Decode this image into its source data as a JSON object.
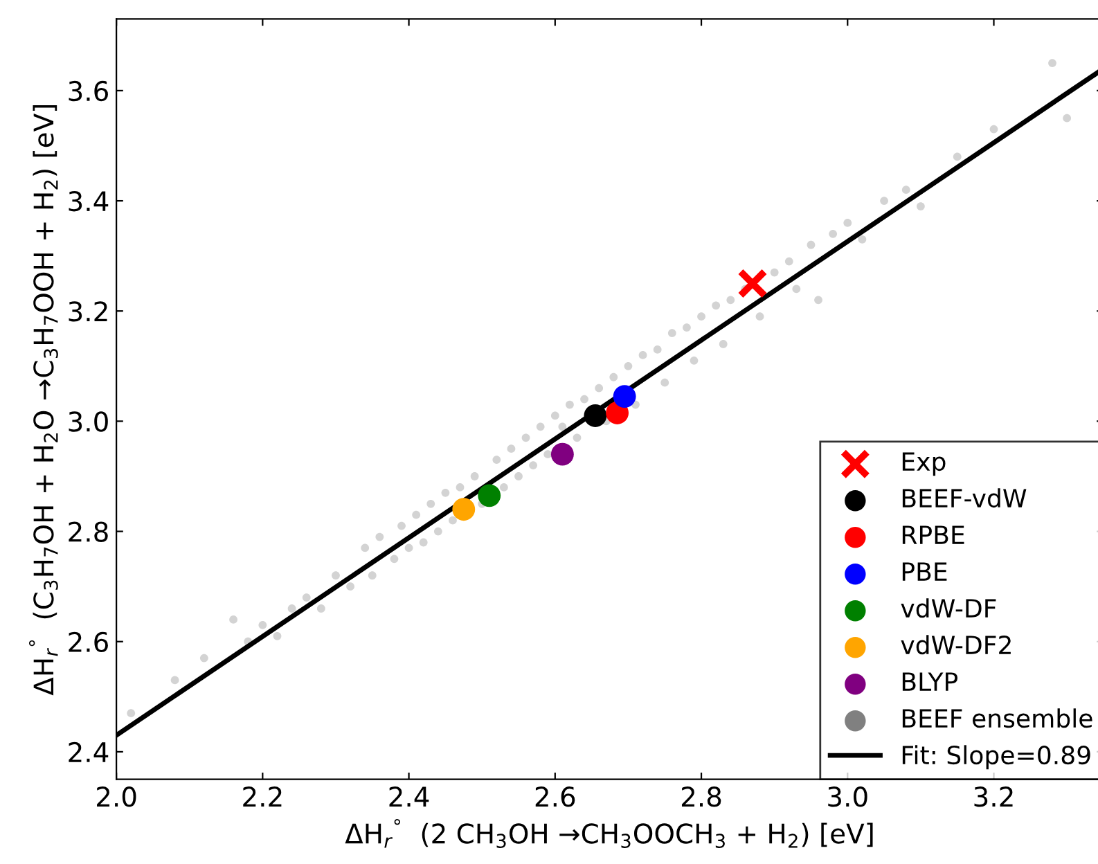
{
  "chart_data": {
    "type": "scatter",
    "xlabel": "ΔH$_{r}$$^{°}$  (2 CH$_{3}$OH →CH$_{3}$OOCH$_{3}$ + H$_{2}$) [eV]",
    "ylabel": "ΔH$_{r}$$^{°}$  (C$_{3}$H$_{7}$OH + H$_{2}$O →C$_{3}$H$_{7}$OOH + H$_{2}$) [eV]",
    "xlim": [
      2.0,
      3.35
    ],
    "ylim": [
      2.35,
      3.73
    ],
    "xticks": [
      {
        "value": 2.0,
        "label": "2.0"
      },
      2.2,
      2.4,
      2.6,
      2.8,
      {
        "value": 3.0,
        "label": "3.0"
      },
      3.2
    ],
    "yticks": [
      2.4,
      2.6,
      2.8,
      {
        "value": 3.0,
        "label": "3.0"
      },
      3.2,
      3.4,
      3.6
    ],
    "grid": false,
    "legend": "bottom right",
    "series": [
      {
        "name": "Exp",
        "color": "#ff0000",
        "marker": "cross",
        "x": [
          2.87
        ],
        "values": [
          3.25
        ]
      },
      {
        "name": "BEEF-vdW",
        "color": "#000000",
        "marker": "circle",
        "x": [
          2.655
        ],
        "values": [
          3.01
        ]
      },
      {
        "name": "RPBE",
        "color": "#ff0000",
        "marker": "circle",
        "x": [
          2.685
        ],
        "values": [
          3.015
        ]
      },
      {
        "name": "PBE",
        "color": "#0000ff",
        "marker": "circle",
        "x": [
          2.695
        ],
        "values": [
          3.045
        ]
      },
      {
        "name": "vdW-DF",
        "color": "#008000",
        "marker": "circle",
        "x": [
          2.51
        ],
        "values": [
          2.865
        ]
      },
      {
        "name": "vdW-DF2",
        "color": "#ffa500",
        "marker": "circle",
        "x": [
          2.475
        ],
        "values": [
          2.84
        ]
      },
      {
        "name": "BLYP",
        "color": "#800080",
        "marker": "circle",
        "x": [
          2.61
        ],
        "values": [
          2.94
        ]
      },
      {
        "name": "BEEF ensemble",
        "color": "#808080",
        "marker": "circle",
        "x": [
          2.02,
          2.08,
          2.12,
          2.16,
          2.18,
          2.2,
          2.22,
          2.24,
          2.26,
          2.28,
          2.3,
          2.32,
          2.34,
          2.35,
          2.36,
          2.38,
          2.39,
          2.4,
          2.41,
          2.42,
          2.43,
          2.44,
          2.45,
          2.46,
          2.47,
          2.49,
          2.5,
          2.52,
          2.53,
          2.54,
          2.55,
          2.56,
          2.57,
          2.58,
          2.59,
          2.6,
          2.61,
          2.62,
          2.63,
          2.64,
          2.66,
          2.67,
          2.68,
          2.7,
          2.71,
          2.72,
          2.74,
          2.75,
          2.76,
          2.78,
          2.79,
          2.8,
          2.82,
          2.83,
          2.84,
          2.86,
          2.88,
          2.9,
          2.92,
          2.93,
          2.95,
          2.96,
          2.98,
          3.0,
          3.02,
          3.05,
          3.08,
          3.1,
          3.15,
          3.2,
          3.28,
          3.3
        ],
        "values": [
          2.47,
          2.53,
          2.57,
          2.64,
          2.6,
          2.63,
          2.61,
          2.66,
          2.68,
          2.66,
          2.72,
          2.7,
          2.77,
          2.72,
          2.79,
          2.75,
          2.81,
          2.77,
          2.83,
          2.78,
          2.85,
          2.8,
          2.87,
          2.82,
          2.88,
          2.9,
          2.85,
          2.93,
          2.88,
          2.95,
          2.9,
          2.97,
          2.92,
          2.99,
          2.94,
          3.01,
          2.99,
          3.03,
          2.97,
          3.04,
          3.06,
          3.0,
          3.08,
          3.1,
          3.03,
          3.12,
          3.13,
          3.07,
          3.16,
          3.17,
          3.11,
          3.19,
          3.21,
          3.14,
          3.22,
          3.24,
          3.19,
          3.27,
          3.29,
          3.24,
          3.32,
          3.22,
          3.34,
          3.36,
          3.33,
          3.4,
          3.42,
          3.39,
          3.48,
          3.53,
          3.65,
          3.55
        ]
      },
      {
        "name": "Fit: Slope=0.89",
        "type": "line",
        "color": "#000000",
        "marker": "none",
        "line_style": "solid",
        "x": [
          2.0,
          3.35
        ],
        "values": [
          2.43,
          3.64
        ]
      }
    ]
  }
}
